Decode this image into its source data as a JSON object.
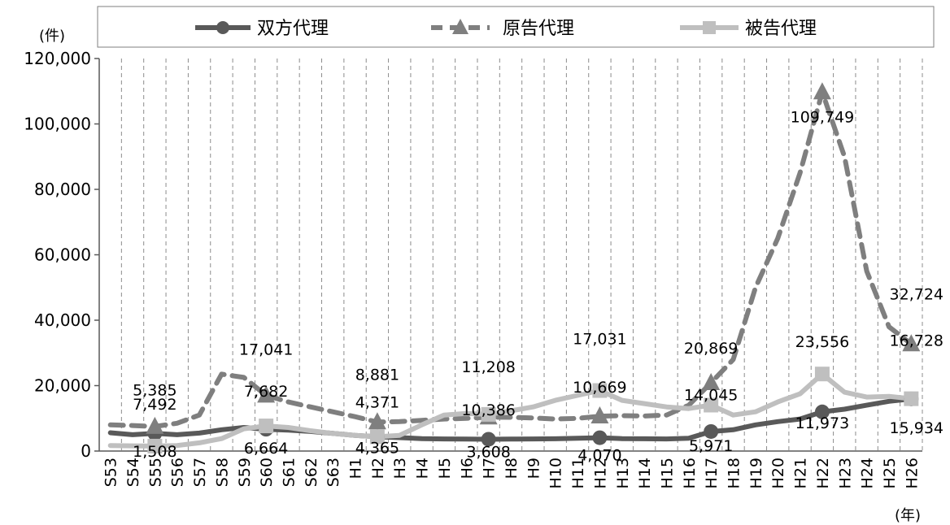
{
  "chart_data": {
    "type": "line",
    "title": "",
    "y_unit_label": "(件)",
    "x_unit_label": "(年)",
    "ylim": [
      0,
      120000
    ],
    "yticks": [
      0,
      20000,
      40000,
      60000,
      80000,
      100000,
      120000
    ],
    "ytick_labels": [
      "0",
      "20,000",
      "40,000",
      "60,000",
      "80,000",
      "100,000",
      "120,000"
    ],
    "grid": "vertical dashed",
    "legend_position": "top",
    "categories": [
      "S53",
      "S54",
      "S55",
      "S56",
      "S57",
      "S58",
      "S59",
      "S60",
      "S61",
      "S62",
      "S63",
      "H1",
      "H2",
      "H3",
      "H4",
      "H5",
      "H6",
      "H7",
      "H8",
      "H9",
      "H10",
      "H11",
      "H12",
      "H13",
      "H14",
      "H15",
      "H16",
      "H17",
      "H18",
      "H19",
      "H20",
      "H21",
      "H22",
      "H23",
      "H24",
      "H25",
      "H26"
    ],
    "series": [
      {
        "name": "双方代理",
        "color": "#595959",
        "dash": "solid",
        "marker": "circle",
        "values": [
          5600,
          5000,
          5385,
          5000,
          5500,
          6500,
          7200,
          6664,
          6400,
          6000,
          5400,
          4800,
          4371,
          4100,
          3800,
          3700,
          3650,
          3608,
          3650,
          3700,
          3750,
          3900,
          4070,
          3800,
          3750,
          3700,
          3900,
          5971,
          6500,
          8000,
          9000,
          9800,
          11973,
          12800,
          14000,
          15200,
          15934
        ]
      },
      {
        "name": "原告代理",
        "color": "#7f7f7f",
        "dash": "dashed",
        "marker": "triangle",
        "values": [
          8000,
          7800,
          7492,
          8500,
          11000,
          23500,
          22500,
          17041,
          15000,
          13500,
          12000,
          10500,
          8881,
          9000,
          9400,
          9800,
          10000,
          10386,
          10300,
          10100,
          9800,
          10000,
          10669,
          10800,
          10700,
          11000,
          14000,
          20869,
          28000,
          50000,
          65000,
          85000,
          109749,
          90000,
          55000,
          38000,
          32724
        ]
      },
      {
        "name": "被告代理",
        "color": "#bfbfbf",
        "dash": "solid",
        "marker": "square",
        "values": [
          1700,
          1600,
          1508,
          1700,
          2500,
          3800,
          6800,
          7682,
          7200,
          6200,
          5400,
          4800,
          4365,
          4800,
          8000,
          11000,
          11500,
          11208,
          12300,
          13500,
          15500,
          17031,
          18500,
          15500,
          14500,
          13500,
          13000,
          14045,
          11000,
          12000,
          15000,
          17500,
          23556,
          18000,
          16500,
          16728,
          16000
        ]
      }
    ],
    "data_labels": [
      {
        "text": "7,492"
      },
      {
        "text": "5,385"
      },
      {
        "text": "1,508"
      },
      {
        "text": "17,041"
      },
      {
        "text": "7,682"
      },
      {
        "text": "6,664"
      },
      {
        "text": "8,881"
      },
      {
        "text": "4,371"
      },
      {
        "text": "4,365"
      },
      {
        "text": "11,208"
      },
      {
        "text": "10,386"
      },
      {
        "text": "3,608"
      },
      {
        "text": "17,031"
      },
      {
        "text": "10,669"
      },
      {
        "text": "4,070"
      },
      {
        "text": "20,869"
      },
      {
        "text": "14,045"
      },
      {
        "text": "5,971"
      },
      {
        "text": "109,749"
      },
      {
        "text": "23,556"
      },
      {
        "text": "11,973"
      },
      {
        "text": "32,724"
      },
      {
        "text": "16,728"
      },
      {
        "text": "15,934"
      }
    ]
  }
}
